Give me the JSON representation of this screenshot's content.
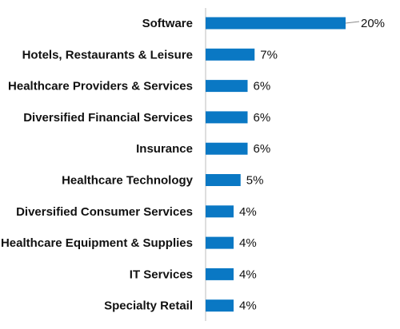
{
  "chart_data": {
    "type": "bar",
    "orientation": "horizontal",
    "categories": [
      "Software",
      "Hotels, Restaurants & Leisure",
      "Healthcare Providers & Services",
      "Diversified Financial Services",
      "Insurance",
      "Healthcare Technology",
      "Diversified Consumer Services",
      "Healthcare Equipment & Supplies",
      "IT Services",
      "Specialty Retail"
    ],
    "values": [
      20,
      7,
      6,
      6,
      6,
      5,
      4,
      4,
      4,
      4
    ],
    "value_labels": [
      "20%",
      "7%",
      "6%",
      "6%",
      "6%",
      "5%",
      "4%",
      "4%",
      "4%",
      "4%"
    ],
    "unit": "%",
    "title": "",
    "xlabel": "",
    "ylabel": "",
    "grid": false,
    "legend": "none",
    "bar_color": "#0a78c4"
  }
}
